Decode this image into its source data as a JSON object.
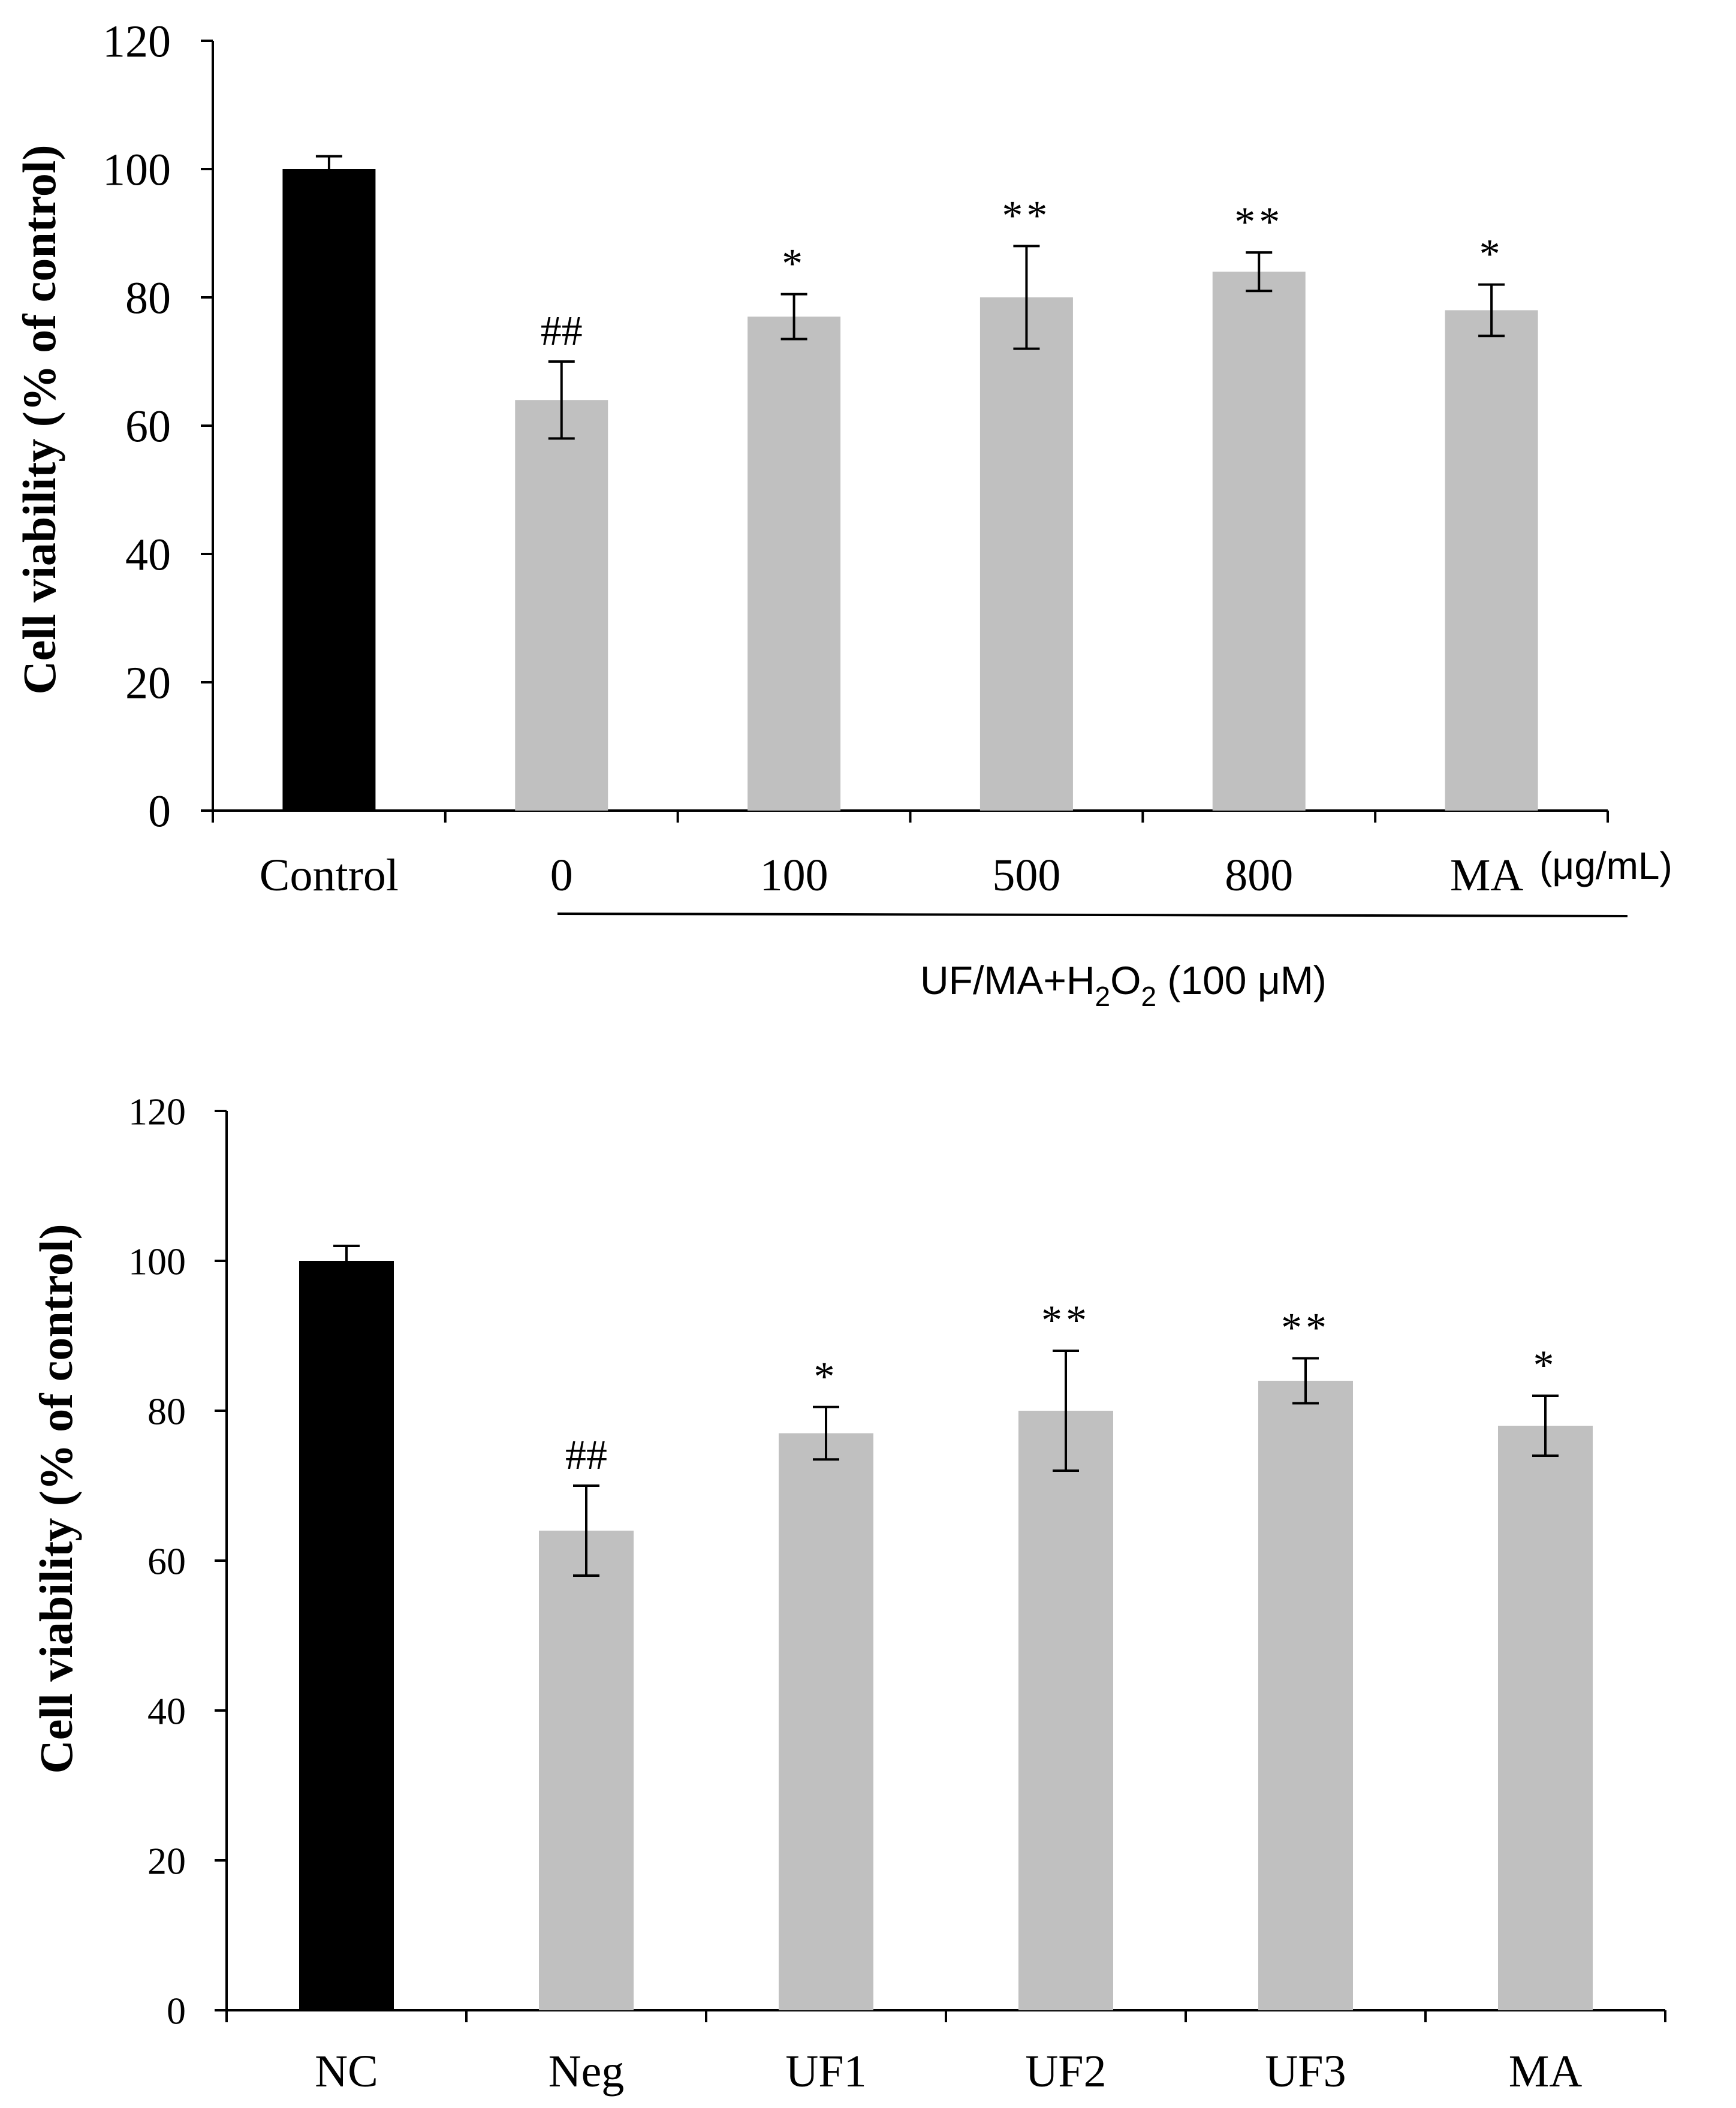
{
  "chart_data": [
    {
      "type": "bar",
      "title": "",
      "ylabel": "Cell viability (% of control)",
      "xlabel": "",
      "ylim": [
        0,
        120
      ],
      "yticks": [
        0,
        20,
        40,
        60,
        80,
        100,
        120
      ],
      "categories": [
        "Control",
        "0",
        "100",
        "500",
        "800",
        "MA"
      ],
      "values": [
        100,
        64,
        77,
        80,
        84,
        78
      ],
      "errors": [
        2,
        6,
        3.5,
        8,
        3,
        4
      ],
      "annotations": [
        "",
        "##",
        "*",
        "**",
        "**",
        "*"
      ],
      "colors": [
        "#000000",
        "#c0c0c0",
        "#c0c0c0",
        "#c0c0c0",
        "#c0c0c0",
        "#c0c0c0"
      ],
      "unit_label": "(μg/mL)",
      "group_label": "UF/MA+H",
      "group_label_sub1": "2",
      "group_label_mid": "O",
      "group_label_sub2": "2",
      "group_label_tail": " (100 μM)"
    },
    {
      "type": "bar",
      "title": "",
      "ylabel": "Cell viability (% of control)",
      "xlabel": "",
      "ylim": [
        0,
        120
      ],
      "yticks": [
        0,
        20,
        40,
        60,
        80,
        100,
        120
      ],
      "categories": [
        "NC",
        "Neg",
        "UF1",
        "UF2",
        "UF3",
        "MA"
      ],
      "values": [
        100,
        64,
        77,
        80,
        84,
        78
      ],
      "errors": [
        2,
        6,
        3.5,
        8,
        3,
        4
      ],
      "annotations": [
        "",
        "##",
        "*",
        "**",
        "**",
        "*"
      ],
      "colors": [
        "#000000",
        "#c0c0c0",
        "#c0c0c0",
        "#c0c0c0",
        "#c0c0c0",
        "#c0c0c0"
      ]
    }
  ]
}
